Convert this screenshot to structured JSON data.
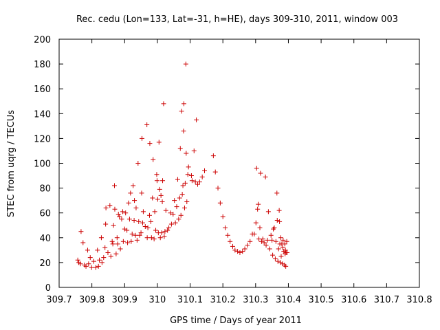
{
  "chart_data": {
    "type": "scatter",
    "title": "Rec. cedu (Lon=133, Lat=-31, h=HE), days 309-310, 2011, window 003",
    "xlabel": "GPS time / Days of year 2011",
    "ylabel": "STEC from uqrg / TECUs",
    "xlim": [
      309.7,
      310.8
    ],
    "ylim": [
      0,
      200
    ],
    "xticks": [
      309.7,
      309.8,
      309.9,
      310,
      310.1,
      310.2,
      310.3,
      310.4,
      310.5,
      310.6,
      310.7,
      310.8
    ],
    "xtick_labels": [
      "309.7",
      "309.8",
      "309.9",
      "310",
      "310.1",
      "310.2",
      "310.3",
      "310.4",
      "310.5",
      "310.6",
      "310.7",
      "310.8"
    ],
    "yticks": [
      0,
      20,
      40,
      60,
      80,
      100,
      120,
      140,
      160,
      180,
      200
    ],
    "yticks_labels": [
      "0",
      "20",
      "40",
      "60",
      "80",
      "100",
      "120",
      "140",
      "160",
      "180",
      "200"
    ],
    "marker": "+",
    "marker_color": "#cc0000",
    "grid": false,
    "series": [
      {
        "points": [
          [
            309.757,
            22
          ],
          [
            309.76,
            20
          ],
          [
            309.765,
            19
          ],
          [
            309.767,
            45
          ],
          [
            309.773,
            36
          ],
          [
            309.777,
            18
          ],
          [
            309.782,
            17
          ],
          [
            309.787,
            30
          ],
          [
            309.79,
            19
          ],
          [
            309.795,
            24
          ],
          [
            309.799,
            16
          ],
          [
            309.806,
            21
          ],
          [
            309.812,
            16
          ],
          [
            309.817,
            30
          ],
          [
            309.82,
            17
          ],
          [
            309.823,
            22
          ],
          [
            309.829,
            40
          ],
          [
            309.831,
            20
          ],
          [
            309.836,
            24
          ],
          [
            309.84,
            32
          ],
          [
            309.842,
            51
          ],
          [
            309.843,
            64
          ],
          [
            309.849,
            28
          ],
          [
            309.855,
            66
          ],
          [
            309.858,
            25
          ],
          [
            309.862,
            37
          ],
          [
            309.864,
            35
          ],
          [
            309.866,
            50
          ],
          [
            309.869,
            82
          ],
          [
            309.87,
            63
          ],
          [
            309.874,
            27
          ],
          [
            309.877,
            40
          ],
          [
            309.879,
            35
          ],
          [
            309.881,
            59
          ],
          [
            309.884,
            57
          ],
          [
            309.887,
            31
          ],
          [
            309.891,
            55
          ],
          [
            309.894,
            61
          ],
          [
            309.896,
            37
          ],
          [
            309.9,
            47
          ],
          [
            309.903,
            60
          ],
          [
            309.907,
            46
          ],
          [
            309.909,
            36
          ],
          [
            309.912,
            68
          ],
          [
            309.915,
            55
          ],
          [
            309.918,
            76
          ],
          [
            309.92,
            37
          ],
          [
            309.923,
            43
          ],
          [
            309.926,
            82
          ],
          [
            309.929,
            54
          ],
          [
            309.93,
            70
          ],
          [
            309.933,
            42
          ],
          [
            309.935,
            64
          ],
          [
            309.938,
            38
          ],
          [
            309.941,
            100
          ],
          [
            309.943,
            53
          ],
          [
            309.946,
            42
          ],
          [
            309.95,
            44
          ],
          [
            309.952,
            76
          ],
          [
            309.953,
            120
          ],
          [
            309.955,
            52
          ],
          [
            309.957,
            61
          ],
          [
            309.963,
            49
          ],
          [
            309.968,
            131
          ],
          [
            309.969,
            40
          ],
          [
            309.971,
            48
          ],
          [
            309.976,
            58
          ],
          [
            309.977,
            116
          ],
          [
            309.98,
            53
          ],
          [
            309.982,
            40
          ],
          [
            309.985,
            72
          ],
          [
            309.987,
            103
          ],
          [
            309.99,
            39
          ],
          [
            309.992,
            61
          ],
          [
            309.995,
            46
          ],
          [
            309.998,
            91
          ],
          [
            309.999,
            86
          ],
          [
            310.001,
            71
          ],
          [
            310.003,
            44
          ],
          [
            310.005,
            117
          ],
          [
            310.007,
            79
          ],
          [
            310.009,
            40
          ],
          [
            310.011,
            74
          ],
          [
            310.013,
            44
          ],
          [
            310.015,
            69
          ],
          [
            310.016,
            86
          ],
          [
            310.019,
            148
          ],
          [
            310.021,
            41
          ],
          [
            310.023,
            45
          ],
          [
            310.026,
            62
          ],
          [
            310.031,
            46
          ],
          [
            310.035,
            48
          ],
          [
            310.04,
            60
          ],
          [
            310.043,
            51
          ],
          [
            310.048,
            59
          ],
          [
            310.052,
            70
          ],
          [
            310.055,
            52
          ],
          [
            310.059,
            65
          ],
          [
            310.062,
            87
          ],
          [
            310.065,
            55
          ],
          [
            310.068,
            72
          ],
          [
            310.07,
            112
          ],
          [
            310.072,
            58
          ],
          [
            310.074,
            142
          ],
          [
            310.076,
            75
          ],
          [
            310.078,
            82
          ],
          [
            310.08,
            126
          ],
          [
            310.081,
            148
          ],
          [
            310.083,
            64
          ],
          [
            310.085,
            84
          ],
          [
            310.087,
            180
          ],
          [
            310.088,
            108
          ],
          [
            310.09,
            69
          ],
          [
            310.093,
            91
          ],
          [
            310.095,
            97
          ],
          [
            310.104,
            90
          ],
          [
            310.106,
            86
          ],
          [
            310.112,
            110
          ],
          [
            310.116,
            85
          ],
          [
            310.119,
            135
          ],
          [
            310.123,
            83
          ],
          [
            310.129,
            85
          ],
          [
            310.137,
            89
          ],
          [
            310.144,
            94
          ],
          [
            310.171,
            106
          ],
          [
            310.177,
            93
          ],
          [
            310.185,
            80
          ],
          [
            310.192,
            68
          ],
          [
            310.2,
            57
          ],
          [
            310.207,
            48
          ],
          [
            310.215,
            42
          ],
          [
            310.222,
            37
          ],
          [
            310.23,
            33
          ],
          [
            310.237,
            30
          ],
          [
            310.245,
            29
          ],
          [
            310.252,
            28
          ],
          [
            310.26,
            29
          ],
          [
            310.267,
            31
          ],
          [
            310.275,
            34
          ],
          [
            310.283,
            37
          ],
          [
            310.29,
            43
          ],
          [
            310.296,
            43
          ],
          [
            310.301,
            52
          ],
          [
            310.303,
            96
          ],
          [
            310.306,
            63
          ],
          [
            310.308,
            67
          ],
          [
            310.31,
            39
          ],
          [
            310.313,
            48
          ],
          [
            310.315,
            92
          ],
          [
            310.318,
            37
          ],
          [
            310.322,
            39
          ],
          [
            310.326,
            36
          ],
          [
            310.33,
            89
          ],
          [
            310.332,
            34
          ],
          [
            310.336,
            38
          ],
          [
            310.339,
            61
          ],
          [
            310.343,
            31
          ],
          [
            310.347,
            42
          ],
          [
            310.35,
            38
          ],
          [
            310.352,
            26
          ],
          [
            310.354,
            47
          ],
          [
            310.357,
            48
          ],
          [
            310.36,
            23
          ],
          [
            310.362,
            37
          ],
          [
            310.365,
            76
          ],
          [
            310.366,
            54
          ],
          [
            310.368,
            21
          ],
          [
            310.37,
            31
          ],
          [
            310.372,
            62
          ],
          [
            310.373,
            53
          ],
          [
            310.374,
            35
          ],
          [
            310.376,
            20
          ],
          [
            310.377,
            40
          ],
          [
            310.378,
            25
          ],
          [
            310.38,
            35
          ],
          [
            310.382,
            19
          ],
          [
            310.383,
            32
          ],
          [
            310.384,
            38
          ],
          [
            310.386,
            29
          ],
          [
            310.388,
            18
          ],
          [
            310.389,
            35
          ],
          [
            310.39,
            27
          ],
          [
            310.391,
            30
          ],
          [
            310.392,
            17
          ],
          [
            310.393,
            28
          ],
          [
            310.395,
            37
          ],
          [
            310.396,
            28
          ]
        ]
      }
    ]
  }
}
